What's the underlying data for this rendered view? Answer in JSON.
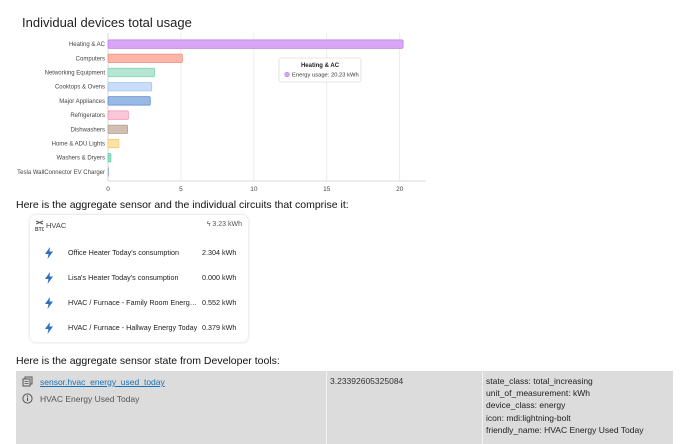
{
  "chart_title": "Individual devices total usage",
  "chart_data": {
    "type": "bar",
    "orientation": "horizontal",
    "title": "Individual devices total usage",
    "categories": [
      "Heating & AC",
      "Computers",
      "Networking Equipment",
      "Cooktops & Ovens",
      "Major Appliances",
      "Refrigerators",
      "Dishwashers",
      "Home & ADU Lights",
      "Washers & Dryers",
      "Tesla WallConnector EV Charger"
    ],
    "values": [
      20.23,
      5.1,
      3.2,
      3.0,
      2.9,
      1.4,
      1.35,
      0.75,
      0.2,
      0.05
    ],
    "colors": [
      "#d9a6f5",
      "#fbb6a8",
      "#b4e6d3",
      "#c8ddf8",
      "#98b8e6",
      "#fac7d8",
      "#d3bfb2",
      "#fde2a8",
      "#9be3cc",
      "#d6e0ee"
    ],
    "borders": [
      "#b97ae8",
      "#f28672",
      "#7fcfae",
      "#9cc0ee",
      "#5b87cb",
      "#f08fb1",
      "#b2978a",
      "#f4c870",
      "#4fc7a0",
      "#a8b7cc"
    ],
    "xlim": [
      0,
      20.5
    ],
    "xticks": [
      "0",
      "5",
      "10",
      "15",
      "20"
    ],
    "grid": true,
    "tooltip": {
      "title": "Heating & AC",
      "label": "Energy usage: 20.23 kWh"
    }
  },
  "para1": "Here is the aggregate sensor and the individual circuits that comprise it:",
  "hvac": {
    "icon_text": "HVAC",
    "title": "HVAC",
    "total": "3.23 kWh",
    "rows": [
      {
        "label": "Office Heater Today's consumption",
        "value": "2.304 kWh"
      },
      {
        "label": "Lisa's Heater Today's consumption",
        "value": "0.000 kWh"
      },
      {
        "label": "HVAC / Furnace - Family Room Energy Today",
        "value": "0.552 kWh"
      },
      {
        "label": "HVAC / Furnace - Hallway Energy Today",
        "value": "0.379 kWh"
      }
    ]
  },
  "para2": "Here is the aggregate sensor state from Developer tools:",
  "dev": {
    "entity_id": "sensor.hvac_energy_used_today",
    "friendly": "HVAC Energy Used Today",
    "state": "3.23392605325084",
    "attributes": [
      "state_class: total_increasing",
      "unit_of_measurement: kWh",
      "device_class: energy",
      "icon: mdi:lightning-bolt",
      "friendly_name: HVAC Energy Used Today"
    ]
  }
}
